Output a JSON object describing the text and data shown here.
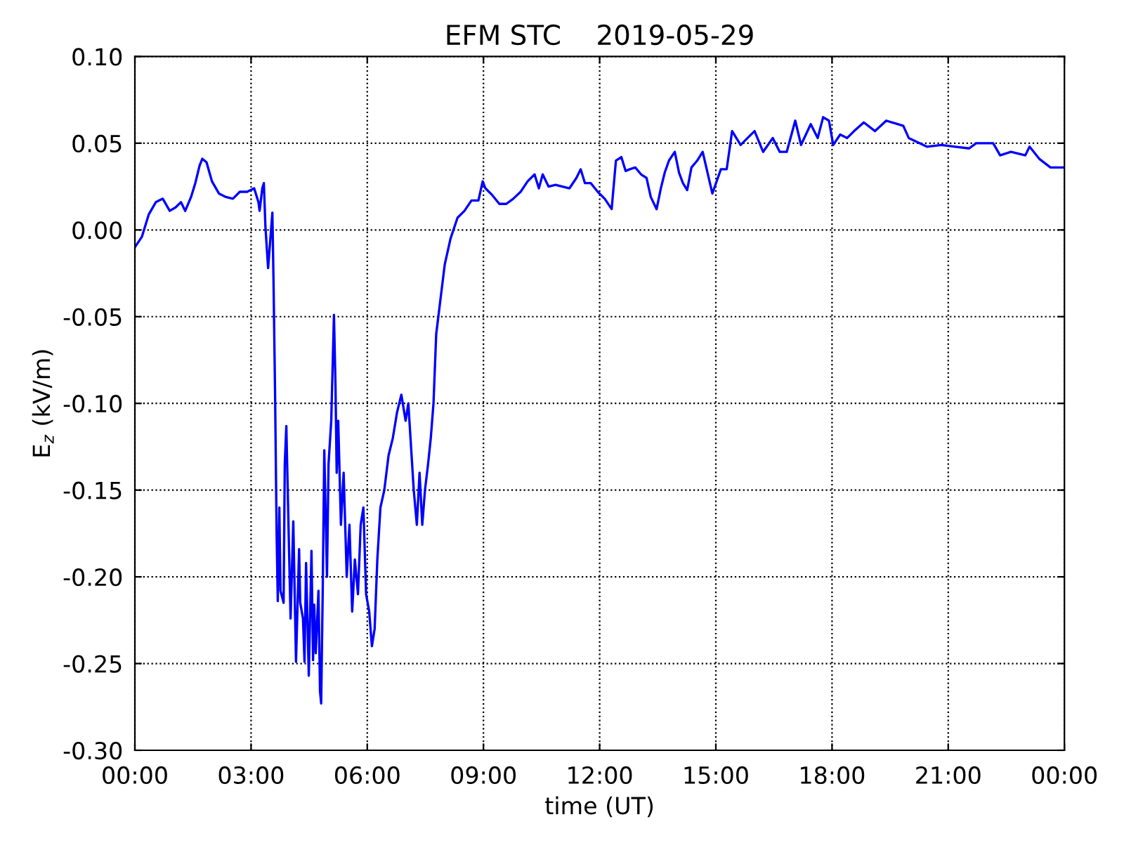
{
  "chart_data": {
    "type": "line",
    "title": "EFM STC    2019-05-29",
    "xlabel": "time (UT)",
    "ylabel": "E$_{z}$ (kV/m)",
    "xlim": [
      0,
      24
    ],
    "xticks": [
      {
        "value": 0,
        "label": "00:00"
      },
      {
        "value": 3,
        "label": "03:00"
      },
      {
        "value": 6,
        "label": "06:00"
      },
      {
        "value": 9,
        "label": "09:00"
      },
      {
        "value": 12,
        "label": "12:00"
      },
      {
        "value": 15,
        "label": "15:00"
      },
      {
        "value": 18,
        "label": "18:00"
      },
      {
        "value": 21,
        "label": "21:00"
      },
      {
        "value": 24,
        "label": "00:00"
      }
    ],
    "ylim": [
      -0.3,
      0.1
    ],
    "yticks": [
      {
        "value": -0.3,
        "label": "-0.30"
      },
      {
        "value": -0.25,
        "label": "-0.25"
      },
      {
        "value": -0.2,
        "label": "-0.20"
      },
      {
        "value": -0.15,
        "label": "-0.15"
      },
      {
        "value": -0.1,
        "label": "-0.10"
      },
      {
        "value": -0.05,
        "label": "-0.05"
      },
      {
        "value": 0,
        "label": "0.00"
      },
      {
        "value": 0.05,
        "label": "0.05"
      },
      {
        "value": 0.1,
        "label": "0.10"
      }
    ],
    "grid": true,
    "series": [
      {
        "color": "#0000ff",
        "x": [
          0,
          0.18,
          0.36,
          0.54,
          0.72,
          0.9,
          1.05,
          1.19,
          1.3,
          1.45,
          1.56,
          1.67,
          1.74,
          1.85,
          1.99,
          2.17,
          2.35,
          2.53,
          2.71,
          2.9,
          3.08,
          3.19,
          3.22,
          3.29,
          3.33,
          3.37,
          3.44,
          3.55,
          3.58,
          3.62,
          3.66,
          3.69,
          3.73,
          3.76,
          3.84,
          3.87,
          3.91,
          3.98,
          4.02,
          4.09,
          4.16,
          4.24,
          4.27,
          4.34,
          4.38,
          4.42,
          4.49,
          4.56,
          4.6,
          4.63,
          4.67,
          4.74,
          4.78,
          4.81,
          4.85,
          4.89,
          4.96,
          5.0,
          5.07,
          5.14,
          5.18,
          5.21,
          5.25,
          5.32,
          5.39,
          5.47,
          5.54,
          5.61,
          5.68,
          5.76,
          5.83,
          5.9,
          5.97,
          6.05,
          6.12,
          6.19,
          6.26,
          6.34,
          6.44,
          6.55,
          6.66,
          6.77,
          6.88,
          6.99,
          7.06,
          7.13,
          7.2,
          7.28,
          7.35,
          7.42,
          7.49,
          7.57,
          7.64,
          7.71,
          7.78,
          7.89,
          8.0,
          8.15,
          8.33,
          8.51,
          8.69,
          8.87,
          8.98,
          9.05,
          9.23,
          9.41,
          9.59,
          9.77,
          9.96,
          10.14,
          10.32,
          10.43,
          10.53,
          10.68,
          10.86,
          11.04,
          11.22,
          11.4,
          11.51,
          11.62,
          11.77,
          11.95,
          12.13,
          12.31,
          12.42,
          12.56,
          12.67,
          12.78,
          12.92,
          13.07,
          13.21,
          13.32,
          13.47,
          13.58,
          13.68,
          13.79,
          13.94,
          14.05,
          14.15,
          14.26,
          14.37,
          14.52,
          14.66,
          14.91,
          15.13,
          15.28,
          15.42,
          15.64,
          15.82,
          16.0,
          16.22,
          16.47,
          16.65,
          16.83,
          17.05,
          17.2,
          17.45,
          17.63,
          17.77,
          17.92,
          18.03,
          18.21,
          18.39,
          18.57,
          18.82,
          19.11,
          19.4,
          19.84,
          19.98,
          20.45,
          20.82,
          21.18,
          21.54,
          21.72,
          22.16,
          22.34,
          22.62,
          22.99,
          23.1,
          23.35,
          23.64,
          24.0
        ],
        "values": [
          -0.01,
          -0.004,
          0.009,
          0.016,
          0.018,
          0.011,
          0.013,
          0.016,
          0.011,
          0.019,
          0.027,
          0.037,
          0.041,
          0.039,
          0.028,
          0.021,
          0.019,
          0.018,
          0.022,
          0.022,
          0.024,
          0.016,
          0.011,
          0.024,
          0.027,
          0.002,
          -0.022,
          0.01,
          -0.03,
          -0.095,
          -0.176,
          -0.214,
          -0.16,
          -0.208,
          -0.215,
          -0.135,
          -0.113,
          -0.184,
          -0.224,
          -0.168,
          -0.249,
          -0.184,
          -0.215,
          -0.224,
          -0.249,
          -0.192,
          -0.257,
          -0.185,
          -0.248,
          -0.216,
          -0.244,
          -0.208,
          -0.266,
          -0.273,
          -0.208,
          -0.127,
          -0.2,
          -0.135,
          -0.11,
          -0.049,
          -0.09,
          -0.14,
          -0.11,
          -0.17,
          -0.14,
          -0.2,
          -0.17,
          -0.22,
          -0.19,
          -0.21,
          -0.17,
          -0.16,
          -0.21,
          -0.22,
          -0.24,
          -0.23,
          -0.19,
          -0.16,
          -0.15,
          -0.13,
          -0.12,
          -0.105,
          -0.095,
          -0.11,
          -0.1,
          -0.125,
          -0.15,
          -0.17,
          -0.14,
          -0.17,
          -0.15,
          -0.135,
          -0.12,
          -0.1,
          -0.06,
          -0.04,
          -0.02,
          -0.005,
          0.007,
          0.011,
          0.017,
          0.017,
          0.028,
          0.024,
          0.02,
          0.015,
          0.015,
          0.018,
          0.022,
          0.028,
          0.032,
          0.024,
          0.032,
          0.025,
          0.026,
          0.025,
          0.024,
          0.03,
          0.035,
          0.027,
          0.027,
          0.022,
          0.018,
          0.012,
          0.04,
          0.042,
          0.034,
          0.035,
          0.036,
          0.032,
          0.03,
          0.019,
          0.012,
          0.024,
          0.033,
          0.04,
          0.045,
          0.033,
          0.027,
          0.023,
          0.036,
          0.04,
          0.045,
          0.021,
          0.035,
          0.035,
          0.057,
          0.049,
          0.053,
          0.057,
          0.045,
          0.053,
          0.045,
          0.045,
          0.063,
          0.049,
          0.061,
          0.053,
          0.065,
          0.063,
          0.049,
          0.055,
          0.053,
          0.057,
          0.062,
          0.057,
          0.063,
          0.06,
          0.053,
          0.048,
          0.049,
          0.048,
          0.047,
          0.05,
          0.05,
          0.043,
          0.045,
          0.043,
          0.048,
          0.041,
          0.036,
          0.036
        ]
      }
    ]
  }
}
